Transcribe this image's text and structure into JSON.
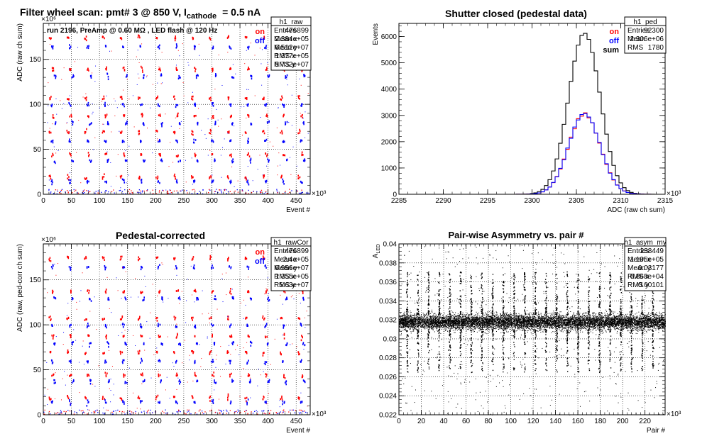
{
  "chart_data": [
    {
      "id": "raw",
      "type": "scatter",
      "title": "Filter wheel scan: pmt#   3 @   850 V, I",
      "title_sub": "cathode",
      "title_tail": "= 0.5 nA",
      "annotation": "run 2196, PreAmp @ 0.60 MΩ , LED flash @  120 Hz",
      "xlabel": "Event #",
      "ylabel": "ADC (raw ch sum)",
      "x_exponent": "×10³",
      "y_exponent": "×10⁶",
      "xlim": [
        0,
        475
      ],
      "ylim": [
        0,
        190
      ],
      "xticks": [
        0,
        50,
        100,
        150,
        200,
        250,
        300,
        350,
        400,
        450
      ],
      "yticks": [
        0,
        50,
        100,
        150
      ],
      "legend": [
        {
          "name": "on",
          "color": "#ff0000"
        },
        {
          "name": "off",
          "color": "#0000ff"
        }
      ],
      "stats": {
        "name": "h1_raw",
        "rows": [
          [
            "Entries",
            "476899"
          ],
          [
            "Mean x",
            "2.384e+05"
          ],
          [
            "Mean y",
            "6.512e+07"
          ],
          [
            "RMS x",
            "1.377e+05"
          ],
          [
            "RMS y",
            "5.732e+07"
          ]
        ]
      },
      "levels_on": [
        175,
        140,
        108,
        88,
        70,
        45,
        20
      ],
      "levels_off": [
        165,
        132,
        100,
        80,
        60,
        38,
        15
      ],
      "grid": true
    },
    {
      "id": "ped",
      "type": "line",
      "title": "Shutter closed (pedestal data)",
      "xlabel": "ADC (raw ch sum)",
      "ylabel": "Events",
      "x_exponent": "×10³",
      "xlim": [
        2285,
        2315
      ],
      "ylim": [
        0,
        6500
      ],
      "xticks": [
        2285,
        2290,
        2295,
        2300,
        2305,
        2310,
        2315
      ],
      "yticks": [
        0,
        1000,
        2000,
        3000,
        4000,
        5000,
        6000
      ],
      "legend": [
        {
          "name": "on",
          "color": "#ff0000"
        },
        {
          "name": "off",
          "color": "#0000ff"
        },
        {
          "name": "sum",
          "color": "#000000"
        }
      ],
      "stats": {
        "name": "h1_ped",
        "rows": [
          [
            "Entries",
            "92300"
          ],
          [
            "Mean",
            "2.306e+06"
          ],
          [
            "RMS",
            "1780"
          ]
        ]
      },
      "series": [
        {
          "name": "sum",
          "color": "#000000",
          "mean": 2305.9,
          "sigma": 1.78,
          "peak": 6130
        },
        {
          "name": "on",
          "color": "#ff0000",
          "mean": 2305.9,
          "sigma": 1.78,
          "peak": 3060
        },
        {
          "name": "off",
          "color": "#0000ff",
          "mean": 2305.9,
          "sigma": 1.78,
          "peak": 3070
        }
      ],
      "bin_width": 0.4,
      "grid": false
    },
    {
      "id": "rawCor",
      "type": "scatter",
      "title": "Pedestal-corrected",
      "xlabel": "Event #",
      "ylabel": "ADC (raw, ped-corr ch sum)",
      "x_exponent": "×10³",
      "y_exponent": "×10⁶",
      "xlim": [
        0,
        475
      ],
      "ylim": [
        0,
        190
      ],
      "xticks": [
        0,
        50,
        100,
        150,
        200,
        250,
        300,
        350,
        400,
        450
      ],
      "yticks": [
        0,
        50,
        100,
        150
      ],
      "legend": [
        {
          "name": "on",
          "color": "#ff0000"
        },
        {
          "name": "off",
          "color": "#0000ff"
        }
      ],
      "stats": {
        "name": "h1_rawCor",
        "rows": [
          [
            "Entries",
            "476899"
          ],
          [
            "Mean x",
            "2.4e+05"
          ],
          [
            "Mean y",
            "6.956e+07"
          ],
          [
            "RMS x",
            "1.355e+05"
          ],
          [
            "RMS y",
            "5.63e+07"
          ]
        ]
      },
      "levels_on": [
        175,
        138,
        108,
        88,
        70,
        45,
        20
      ],
      "levels_off": [
        165,
        130,
        100,
        80,
        60,
        38,
        15
      ],
      "grid": true
    },
    {
      "id": "asym",
      "type": "scatter",
      "title": "Pair-wise Asymmetry vs. pair #",
      "xlabel": "Pair #",
      "ylabel": "A",
      "ylabel_sub": "LED",
      "x_exponent": "×10³",
      "xlim": [
        0,
        238
      ],
      "ylim": [
        0.022,
        0.04
      ],
      "xticks": [
        0,
        20,
        40,
        60,
        80,
        100,
        120,
        140,
        160,
        180,
        200,
        220
      ],
      "yticks": [
        0.022,
        0.024,
        0.026,
        0.028,
        0.03,
        0.032,
        0.034,
        0.036,
        0.038,
        0.04
      ],
      "stats": {
        "name": "h1_asym_my",
        "rows": [
          [
            "Entries",
            "238449"
          ],
          [
            "Mean x",
            "1.195e+05"
          ],
          [
            "Mean y",
            "0.03177"
          ],
          [
            "RMS x",
            "6.868e+04"
          ],
          [
            "RMS y",
            "0.00101"
          ]
        ]
      },
      "band_center": 0.0318,
      "band_halfwidth": 0.0007,
      "grid": true
    }
  ],
  "panels_layout_order": [
    "raw",
    "ped",
    "rawCor",
    "asym"
  ]
}
